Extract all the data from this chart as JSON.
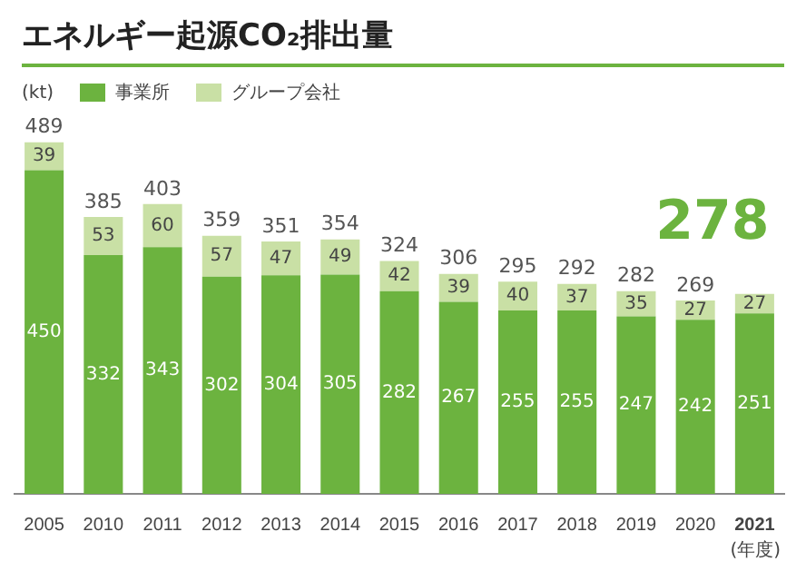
{
  "chart_data": {
    "type": "bar",
    "title": "エネルギー起源CO₂排出量",
    "ylabel": "(kt)",
    "xlabel": "(年度)",
    "stacked": true,
    "legend": "top left",
    "data_labels": true,
    "categories": [
      "2005",
      "2010",
      "2011",
      "2012",
      "2013",
      "2014",
      "2015",
      "2016",
      "2017",
      "2018",
      "2019",
      "2020",
      "2021"
    ],
    "series": [
      {
        "name": "事業所",
        "color": "#6cb33f",
        "values": [
          450,
          332,
          343,
          302,
          304,
          305,
          282,
          267,
          255,
          255,
          247,
          242,
          251
        ]
      },
      {
        "name": "グループ会社",
        "color": "#c9e0a5",
        "values": [
          39,
          53,
          60,
          57,
          47,
          49,
          42,
          39,
          40,
          37,
          35,
          27,
          27
        ]
      }
    ],
    "totals": [
      "489",
      "385",
      "403",
      "359",
      "351",
      "354",
      "324",
      "306",
      "295",
      "292",
      "282",
      "269",
      null
    ],
    "annotations": [
      {
        "text": "278",
        "x": "2021",
        "y": 278
      }
    ]
  }
}
